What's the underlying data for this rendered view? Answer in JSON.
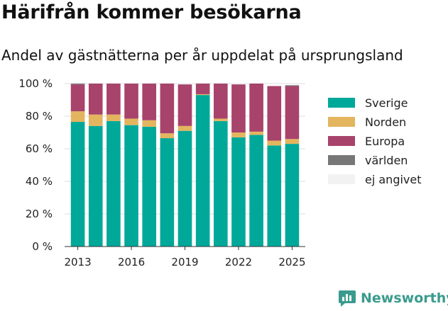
{
  "title": "Härifrån kommer besökarna",
  "subtitle": "Andel av gästnätterna per år uppdelat på ursprungsland",
  "brand": "Newsworthy",
  "colors": {
    "Sverige": "#00a89a",
    "Norden": "#e3b55f",
    "Europa": "#a8436b",
    "världen": "#777777",
    "ej angivet": "#f2f2f2"
  },
  "chart_data": {
    "type": "bar",
    "stacked": true,
    "x": [
      2013,
      2014,
      2015,
      2016,
      2017,
      2018,
      2019,
      2020,
      2021,
      2022,
      2023,
      2024,
      2025
    ],
    "x_tick_labels": [
      "2013",
      "2016",
      "2019",
      "2022",
      "2025"
    ],
    "y_tick_labels": [
      "0 %",
      "20 %",
      "40 %",
      "60 %",
      "80 %",
      "100 %"
    ],
    "ylim": [
      0,
      100
    ],
    "grid": true,
    "legend_position": "right",
    "series": [
      {
        "name": "Sverige",
        "values": [
          76.5,
          74,
          77,
          74.5,
          73.5,
          66.5,
          71,
          93,
          77,
          67,
          68.5,
          62,
          63
        ]
      },
      {
        "name": "Norden",
        "values": [
          6.5,
          7,
          4,
          4,
          4,
          3,
          3,
          0.5,
          1.5,
          3,
          2,
          3,
          3
        ]
      },
      {
        "name": "Europa",
        "values": [
          16.5,
          19,
          19,
          21.5,
          22.5,
          30.5,
          25.5,
          6.5,
          21.5,
          29.5,
          29.5,
          33.5,
          32.5
        ]
      },
      {
        "name": "världen",
        "values": [
          0.5,
          0,
          0,
          0,
          0,
          0,
          0,
          0,
          0,
          0,
          0,
          0,
          0.5
        ]
      },
      {
        "name": "ej angivet",
        "values": [
          0,
          0,
          0,
          0,
          0,
          0,
          0,
          0,
          0,
          0,
          0,
          0,
          0
        ]
      }
    ]
  }
}
